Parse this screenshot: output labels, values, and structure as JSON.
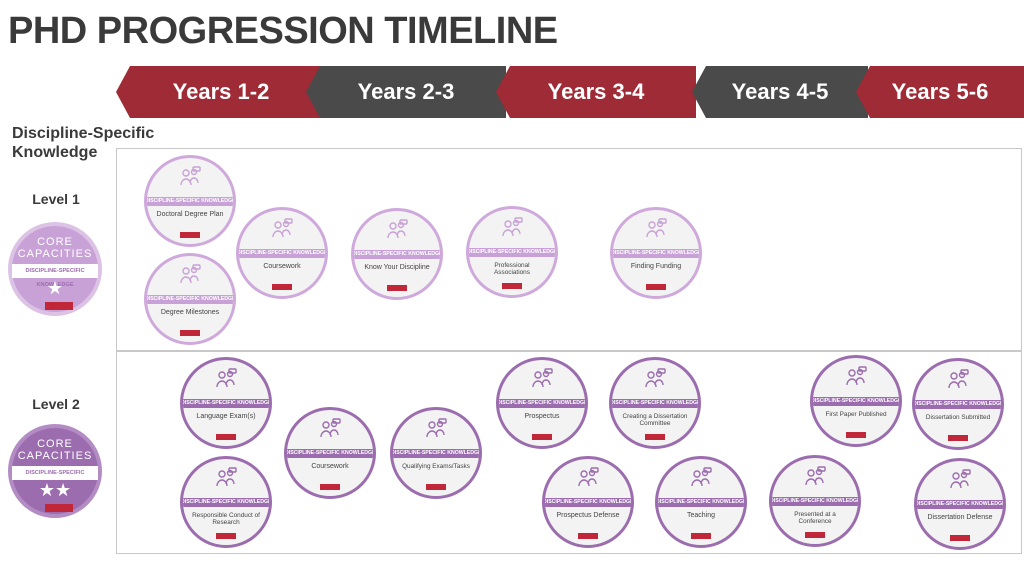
{
  "title": "PHD PROGRESSION TIMELINE",
  "timeline": [
    {
      "label": "Years 1-2",
      "color": "red"
    },
    {
      "label": "Years 2-3",
      "color": "gray"
    },
    {
      "label": "Years 3-4",
      "color": "red"
    },
    {
      "label": "Years 4-5",
      "color": "gray"
    },
    {
      "label": "Years 5-6",
      "color": "red"
    }
  ],
  "section_heading": "Discipline-Specific Knowledge",
  "colors": {
    "red": "#9e2b35",
    "gray": "#4a4a4a",
    "level1_purple": "#c8a2d6",
    "level2_purple": "#9b6cae",
    "logo_red": "#c0283a"
  },
  "levels": [
    {
      "label": "Level 1",
      "core_text": "CORE CAPACITIES",
      "core_band": "DISCIPLINE-SPECIFIC KNOWLEDGE",
      "stars": "★"
    },
    {
      "label": "Level 2",
      "core_text": "CORE CAPACITIES",
      "core_band": "DISCIPLINE-SPECIFIC KNOWLEDGE",
      "stars": "★★"
    }
  ],
  "badge_band": "DISCIPLINE-SPECIFIC KNOWLEDGE",
  "badges": [
    {
      "level": 1,
      "label": "Doctoral Degree Plan"
    },
    {
      "level": 1,
      "label": "Degree Milestones"
    },
    {
      "level": 1,
      "label": "Coursework"
    },
    {
      "level": 1,
      "label": "Know Your Discipline"
    },
    {
      "level": 1,
      "label": "Professional Associations"
    },
    {
      "level": 1,
      "label": "Finding Funding"
    },
    {
      "level": 2,
      "label": "Language Exam(s)"
    },
    {
      "level": 2,
      "label": "Responsible Conduct of Research"
    },
    {
      "level": 2,
      "label": "Coursework"
    },
    {
      "level": 2,
      "label": "Qualifying Exams/Tasks"
    },
    {
      "level": 2,
      "label": "Prospectus"
    },
    {
      "level": 2,
      "label": "Prospectus Defense"
    },
    {
      "level": 2,
      "label": "Creating a Dissertation Committee"
    },
    {
      "level": 2,
      "label": "Teaching"
    },
    {
      "level": 2,
      "label": "Presented at a Conference"
    },
    {
      "level": 2,
      "label": "First Paper Published"
    },
    {
      "level": 2,
      "label": "Dissertation Submitted"
    },
    {
      "level": 2,
      "label": "Dissertation Defense"
    }
  ]
}
